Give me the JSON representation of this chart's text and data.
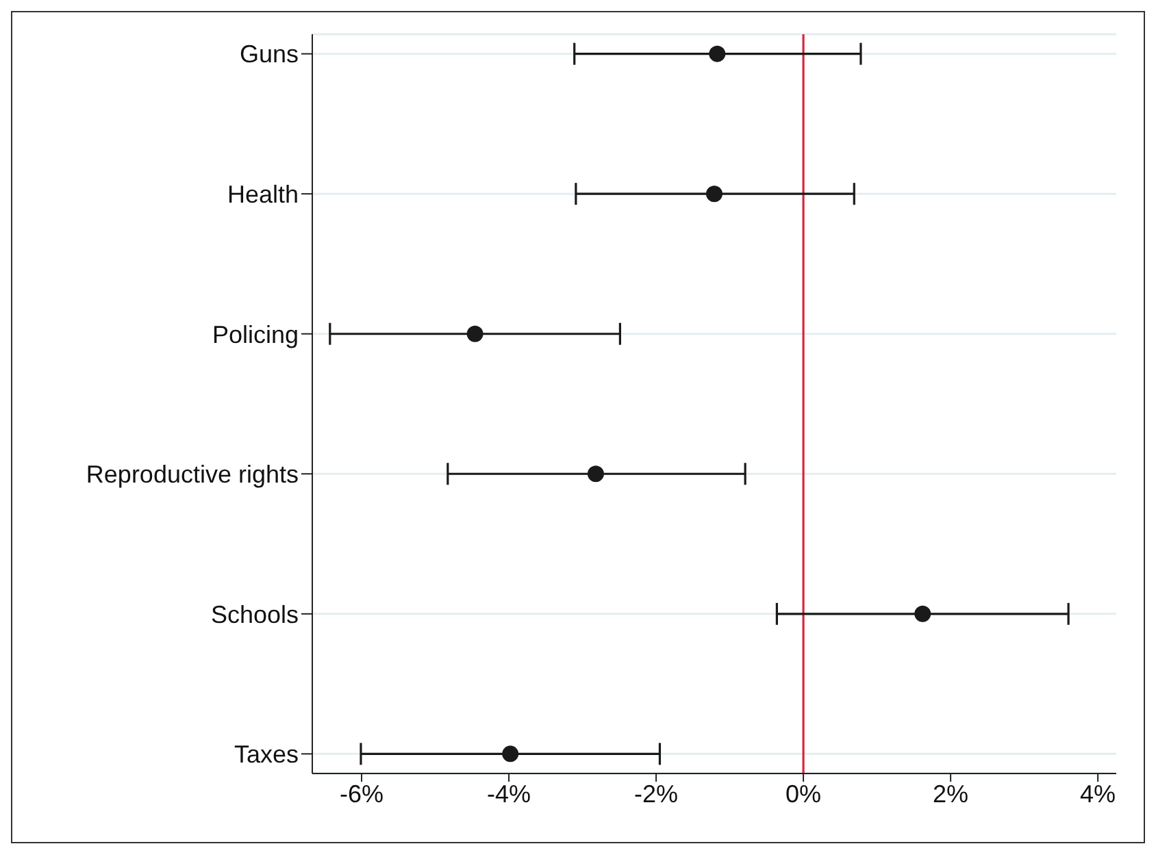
{
  "chart_data": {
    "type": "scatter",
    "orientation": "horizontal",
    "categories": [
      "Guns",
      "Health",
      "Policing",
      "Reproductive rights",
      "Schools",
      "Taxes"
    ],
    "values": [
      -1.17,
      -1.21,
      -4.46,
      -2.82,
      1.62,
      -3.98
    ],
    "errors": [
      [
        -3.11,
        0.78
      ],
      [
        -3.09,
        0.69
      ],
      [
        -6.43,
        -2.49
      ],
      [
        -4.83,
        -0.79
      ],
      [
        -0.36,
        3.6
      ],
      [
        -6.01,
        -1.95
      ]
    ],
    "color": "#1a1a1a",
    "marker": "circle",
    "grid": "y",
    "xlim": [
      -6.67,
      4.25
    ],
    "xticks": [
      {
        "value": -6,
        "label": "-6%"
      },
      {
        "value": -4,
        "label": "-4%"
      },
      {
        "value": -2,
        "label": "-2%"
      },
      {
        "value": 0,
        "label": "0%"
      },
      {
        "value": 2,
        "label": "2%"
      },
      {
        "value": 4,
        "label": "4%"
      }
    ],
    "ref_lines": [
      {
        "axis": "x",
        "value": 0,
        "color": "#d7263d"
      }
    ]
  }
}
